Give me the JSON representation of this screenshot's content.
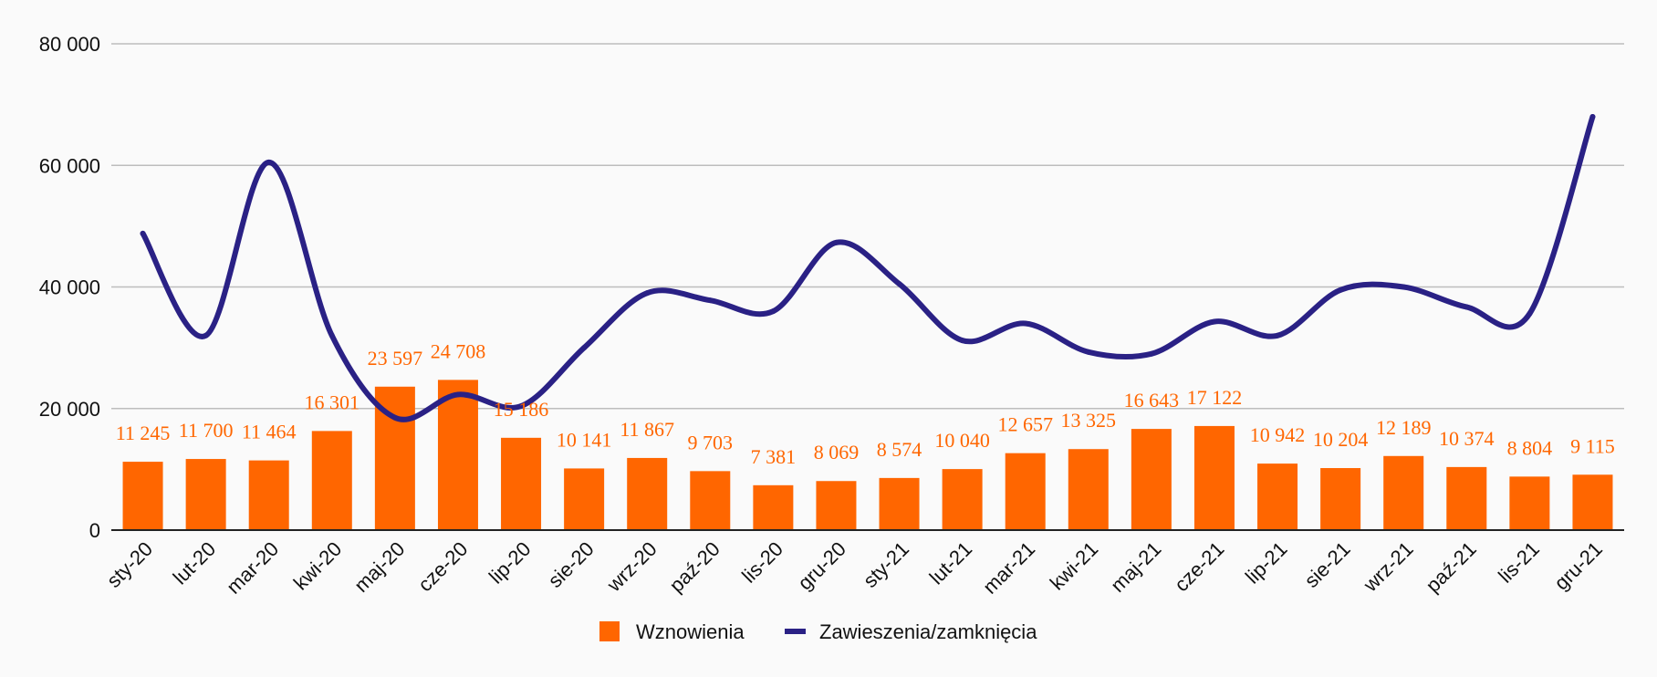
{
  "chart_data": {
    "type": "bar+line",
    "categories": [
      "sty-20",
      "lut-20",
      "mar-20",
      "kwi-20",
      "maj-20",
      "cze-20",
      "lip-20",
      "sie-20",
      "wrz-20",
      "paź-20",
      "lis-20",
      "gru-20",
      "sty-21",
      "lut-21",
      "mar-21",
      "kwi-21",
      "maj-21",
      "cze-21",
      "lip-21",
      "sie-21",
      "wrz-21",
      "paź-21",
      "lis-21",
      "gru-21"
    ],
    "series": [
      {
        "name": "Wznowienia",
        "type": "bar",
        "color": "#ff6600",
        "values": [
          11245,
          11700,
          11464,
          16301,
          23597,
          24708,
          15186,
          10141,
          11867,
          9703,
          7381,
          8069,
          8574,
          10040,
          12657,
          13325,
          16643,
          17122,
          10942,
          10204,
          12189,
          10374,
          8804,
          9115
        ],
        "labels": [
          "11 245",
          "11 700",
          "11 464",
          "16 301",
          "23 597",
          "24 708",
          "15 186",
          "10 141",
          "11 867",
          "9 703",
          "7 381",
          "8 069",
          "8 574",
          "10 040",
          "12 657",
          "13 325",
          "16 643",
          "17 122",
          "10 942",
          "10 204",
          "12 189",
          "10 374",
          "8 804",
          "9 115"
        ]
      },
      {
        "name": "Zawieszenia/zamknięcia",
        "type": "line",
        "color": "#2a2185",
        "values": [
          48800,
          32000,
          60500,
          32000,
          18500,
          22300,
          20400,
          30000,
          39000,
          37800,
          36000,
          47300,
          40500,
          31200,
          34000,
          29300,
          29000,
          34300,
          32000,
          39500,
          40000,
          36700,
          35600,
          68000
        ]
      }
    ],
    "yticks": [
      "0",
      "20 000",
      "40 000",
      "60 000",
      "80 000"
    ],
    "ylim": [
      0,
      80000
    ],
    "grid": true,
    "legend_position": "bottom-center",
    "xlabel": "",
    "ylabel": "",
    "title": ""
  }
}
